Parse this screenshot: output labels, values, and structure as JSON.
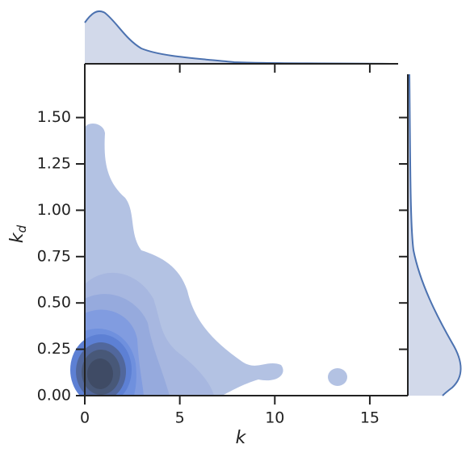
{
  "chart_data": {
    "type": "kde2d",
    "xlabel": "k",
    "ylabel": "k",
    "ylabel_sub": "d",
    "xlim": [
      0,
      17
    ],
    "ylim": [
      0,
      1.79
    ],
    "xticks": [
      0,
      5,
      10,
      15
    ],
    "yticks": [
      {
        "value": 0,
        "label": "0.00"
      },
      {
        "value": 0.25,
        "label": "0.25"
      },
      {
        "value": 0.5,
        "label": "0.50"
      },
      {
        "value": 0.75,
        "label": "0.75"
      },
      {
        "value": 1,
        "label": "1.00"
      },
      {
        "value": 1.25,
        "label": "1.25"
      },
      {
        "value": 1.5,
        "label": "1.50"
      }
    ],
    "color": "#4c72b0"
  }
}
